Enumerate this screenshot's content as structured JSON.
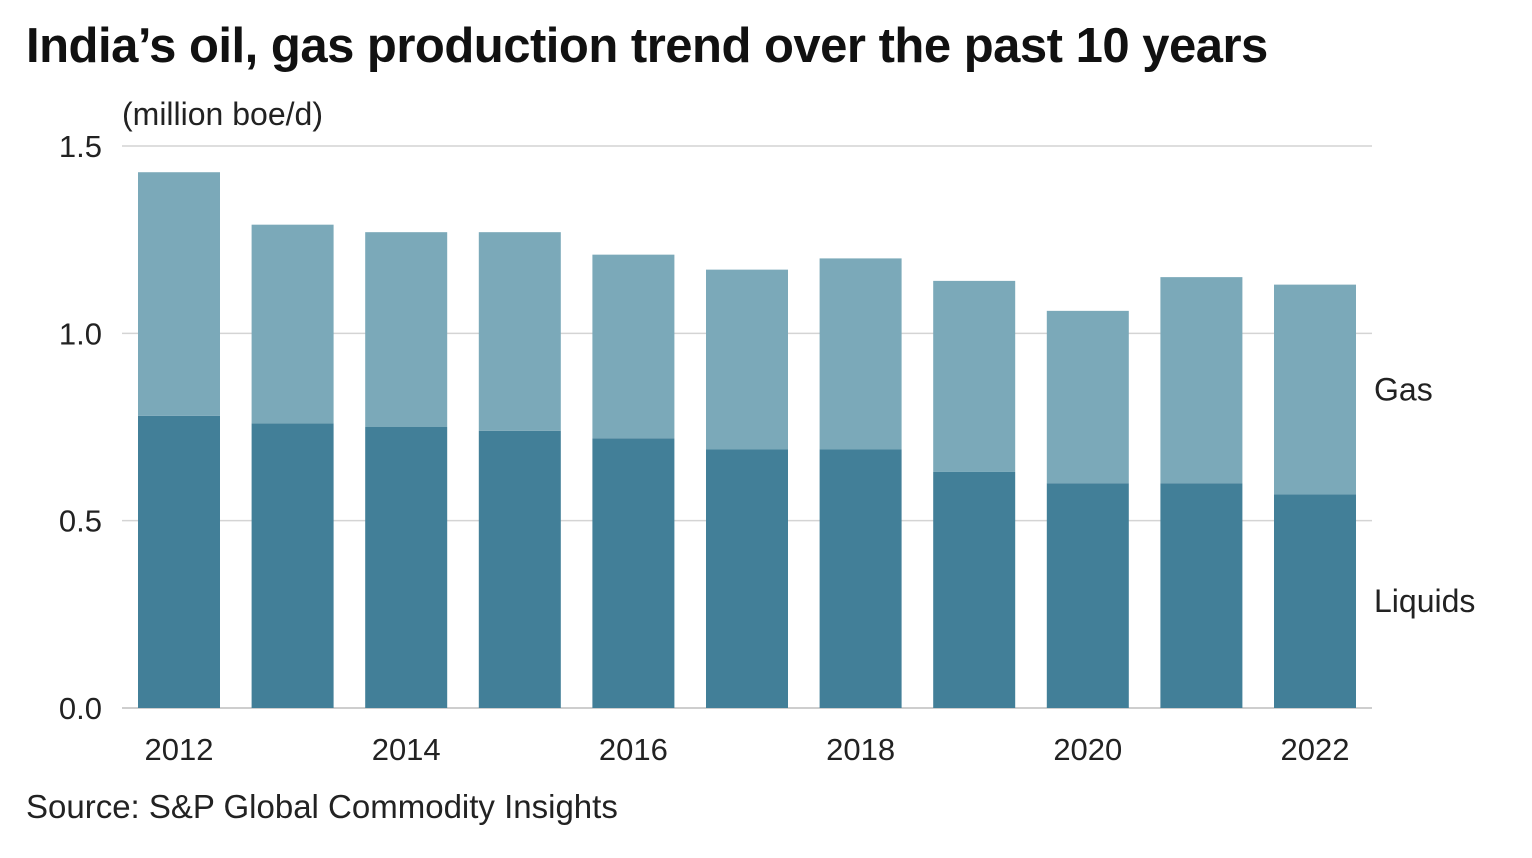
{
  "chart_data": {
    "type": "bar",
    "stacked": true,
    "title": "India’s oil, gas production trend over the past 10 years",
    "ylabel": "(million boe/d)",
    "source": "Source: S&P Global Commodity Insights",
    "ylim": [
      0,
      1.5
    ],
    "yticks": [
      0.0,
      0.5,
      1.0,
      1.5
    ],
    "ytick_labels": [
      "0.0",
      "0.5",
      "1.0",
      "1.5"
    ],
    "categories": [
      "2012",
      "2013",
      "2014",
      "2015",
      "2016",
      "2017",
      "2018",
      "2019",
      "2020",
      "2021",
      "2022"
    ],
    "xtick_labels": [
      "2012",
      "",
      "2014",
      "",
      "2016",
      "",
      "2018",
      "",
      "2020",
      "",
      "2022"
    ],
    "grid": true,
    "legend": "inline-right",
    "series": [
      {
        "name": "Liquids",
        "color": "#427f98",
        "values": [
          0.78,
          0.76,
          0.75,
          0.74,
          0.72,
          0.69,
          0.69,
          0.63,
          0.6,
          0.6,
          0.57
        ]
      },
      {
        "name": "Gas",
        "color": "#7ba9b9",
        "values": [
          0.65,
          0.53,
          0.52,
          0.53,
          0.49,
          0.48,
          0.51,
          0.51,
          0.46,
          0.55,
          0.56
        ]
      }
    ]
  }
}
